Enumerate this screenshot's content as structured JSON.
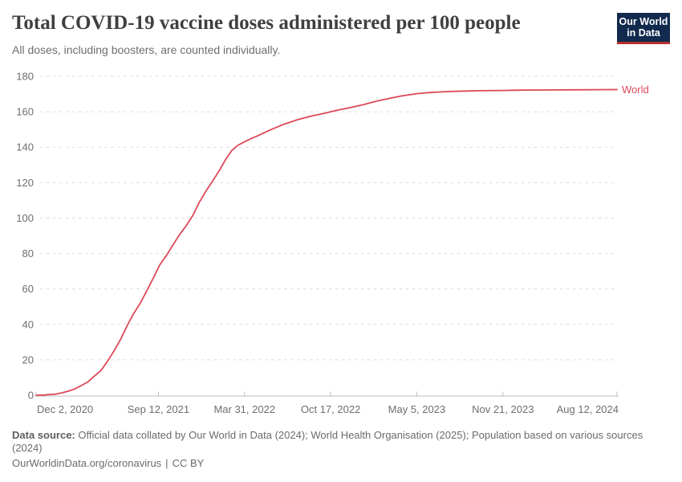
{
  "header": {
    "title": "Total COVID-19 vaccine doses administered per 100 people",
    "subtitle": "All doses, including boosters, are counted individually.",
    "logo": {
      "line1": "Our World",
      "line2": "in Data",
      "bg_color": "#122a4e",
      "stripe_color": "#b5312c"
    }
  },
  "chart_data": {
    "type": "line",
    "title": "Total COVID-19 vaccine doses administered per 100 people",
    "xlabel": "",
    "ylabel": "",
    "grid": "dashed-horizontal",
    "legend_position": "end-of-line-label",
    "y_axis": {
      "min": 0,
      "max": 180,
      "tick_interval": 20,
      "ticks": [
        0,
        20,
        40,
        60,
        80,
        100,
        120,
        140,
        160,
        180
      ]
    },
    "x_axis": {
      "start": "2020-12-02",
      "end": "2024-08-12",
      "ticks": [
        {
          "label": "Dec 2, 2020",
          "date": "2020-12-02"
        },
        {
          "label": "Sep 12, 2021",
          "date": "2021-09-12"
        },
        {
          "label": "Mar 31, 2022",
          "date": "2022-03-31"
        },
        {
          "label": "Oct 17, 2022",
          "date": "2022-10-17"
        },
        {
          "label": "May 5, 2023",
          "date": "2023-05-05"
        },
        {
          "label": "Nov 21, 2023",
          "date": "2023-11-21"
        },
        {
          "label": "Aug 12, 2024",
          "date": "2024-08-12"
        }
      ]
    },
    "series": [
      {
        "name": "World",
        "color": "#dd4858",
        "points": [
          [
            "2020-12-02",
            0
          ],
          [
            "2020-12-20",
            0.1
          ],
          [
            "2021-01-01",
            0.4
          ],
          [
            "2021-01-15",
            0.6
          ],
          [
            "2021-02-01",
            1.4
          ],
          [
            "2021-02-15",
            2.3
          ],
          [
            "2021-03-01",
            3.5
          ],
          [
            "2021-03-15",
            5.2
          ],
          [
            "2021-04-01",
            7.5
          ],
          [
            "2021-04-15",
            10.5
          ],
          [
            "2021-05-01",
            13.8
          ],
          [
            "2021-05-15",
            18.5
          ],
          [
            "2021-06-01",
            25
          ],
          [
            "2021-06-15",
            31
          ],
          [
            "2021-07-01",
            39
          ],
          [
            "2021-07-15",
            45.5
          ],
          [
            "2021-08-01",
            52
          ],
          [
            "2021-08-15",
            58.5
          ],
          [
            "2021-09-01",
            66.5
          ],
          [
            "2021-09-15",
            73.5
          ],
          [
            "2021-10-01",
            79
          ],
          [
            "2021-10-15",
            84.5
          ],
          [
            "2021-11-01",
            91
          ],
          [
            "2021-11-15",
            95.5
          ],
          [
            "2021-12-01",
            101.5
          ],
          [
            "2021-12-15",
            108.5
          ],
          [
            "2022-01-01",
            115.5
          ],
          [
            "2022-01-15",
            120.5
          ],
          [
            "2022-02-01",
            127
          ],
          [
            "2022-02-15",
            133
          ],
          [
            "2022-03-01",
            138
          ],
          [
            "2022-03-15",
            141
          ],
          [
            "2022-03-31",
            143
          ],
          [
            "2022-04-15",
            144.8
          ],
          [
            "2022-05-01",
            146.5
          ],
          [
            "2022-06-01",
            150
          ],
          [
            "2022-07-01",
            153
          ],
          [
            "2022-08-01",
            155.5
          ],
          [
            "2022-09-01",
            157.5
          ],
          [
            "2022-10-01",
            159
          ],
          [
            "2022-10-17",
            160
          ],
          [
            "2022-11-01",
            160.8
          ],
          [
            "2022-12-01",
            162.3
          ],
          [
            "2023-01-01",
            164
          ],
          [
            "2023-02-01",
            166
          ],
          [
            "2023-03-01",
            167.5
          ],
          [
            "2023-04-01",
            169
          ],
          [
            "2023-05-05",
            170.2
          ],
          [
            "2023-06-01",
            170.8
          ],
          [
            "2023-07-01",
            171.2
          ],
          [
            "2023-08-01",
            171.5
          ],
          [
            "2023-09-01",
            171.7
          ],
          [
            "2023-10-01",
            171.9
          ],
          [
            "2023-11-21",
            172
          ],
          [
            "2024-01-01",
            172.2
          ],
          [
            "2024-03-01",
            172.3
          ],
          [
            "2024-05-01",
            172.4
          ],
          [
            "2024-08-12",
            172.5
          ]
        ]
      }
    ],
    "style": {
      "grid_color": "#dcdcdc",
      "axis_color": "#bdbdbd",
      "axis_label_color": "#6e6e6e",
      "axis_label_size": 13
    }
  },
  "footer": {
    "data_source_label": "Data source:",
    "data_source_text": "Official data collated by Our World in Data (2024); World Health Organisation (2025); Population based on various sources (2024)",
    "link_text": "OurWorldinData.org/coronavirus",
    "separator": "|",
    "license": "CC BY"
  }
}
